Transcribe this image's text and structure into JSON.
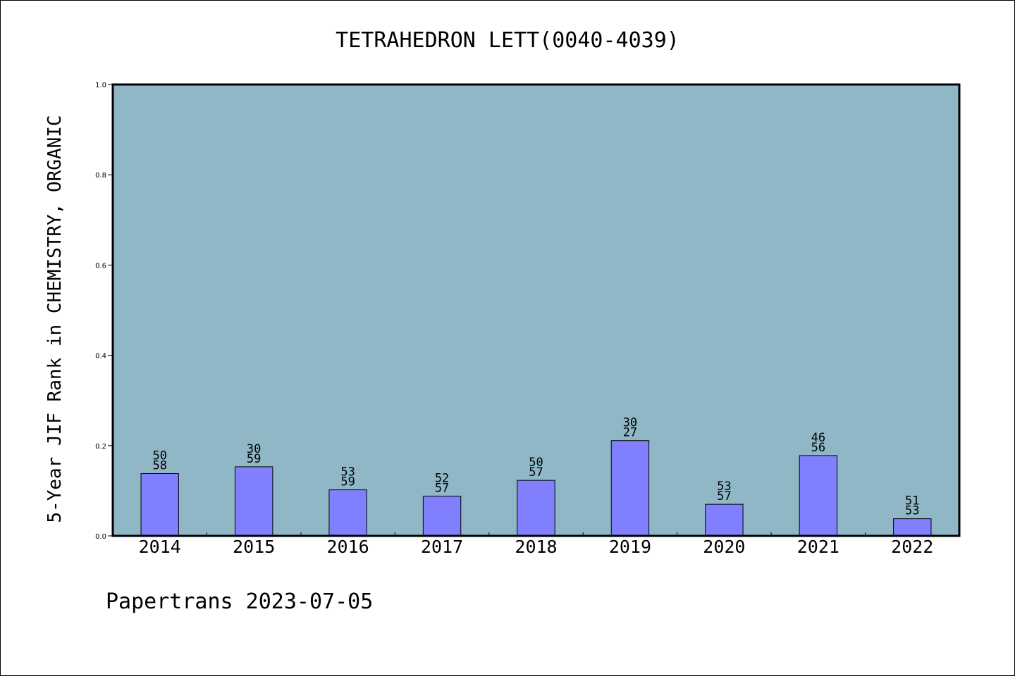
{
  "chart_data": {
    "type": "bar",
    "title": "TETRAHEDRON LETT(0040-4039)",
    "xlabel": "",
    "ylabel": "5-Year JIF Rank in CHEMISTRY, ORGANIC",
    "categories": [
      "2014",
      "2015",
      "2016",
      "2017",
      "2018",
      "2019",
      "2020",
      "2021",
      "2022"
    ],
    "values": [
      0.138,
      0.153,
      0.102,
      0.088,
      0.123,
      0.211,
      0.07,
      0.178,
      0.038
    ],
    "rank_labels": [
      [
        "50",
        "58"
      ],
      [
        "30",
        "59"
      ],
      [
        "53",
        "59"
      ],
      [
        "52",
        "57"
      ],
      [
        "50",
        "57"
      ],
      [
        "30",
        "27"
      ],
      [
        "53",
        "57"
      ],
      [
        "46",
        "56"
      ],
      [
        "51",
        "53"
      ]
    ],
    "ylim": [
      0,
      1
    ],
    "yticks": [
      "0.0",
      "0.2",
      "0.4",
      "0.6",
      "0.8",
      "1.0"
    ],
    "grid": false,
    "colors": {
      "plot_bg": "#8fb7c5",
      "bar_fill": "#8080ff",
      "bar_edge": "#000000"
    }
  },
  "footer": {
    "text": "Papertrans 2023-07-05"
  }
}
